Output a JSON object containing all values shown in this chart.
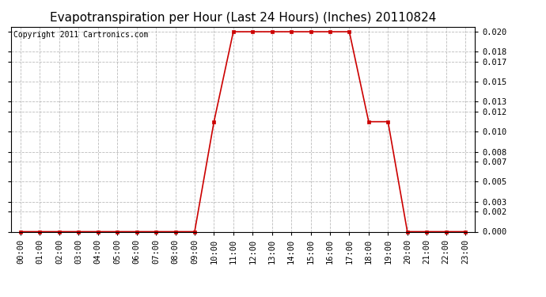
{
  "title": "Evapotranspiration per Hour (Last 24 Hours) (Inches) 20110824",
  "copyright_text": "Copyright 2011 Cartronics.com",
  "x_labels": [
    "00:00",
    "01:00",
    "02:00",
    "03:00",
    "04:00",
    "05:00",
    "06:00",
    "07:00",
    "08:00",
    "09:00",
    "10:00",
    "11:00",
    "12:00",
    "13:00",
    "14:00",
    "15:00",
    "16:00",
    "17:00",
    "18:00",
    "19:00",
    "20:00",
    "21:00",
    "22:00",
    "23:00"
  ],
  "x_values": [
    0,
    1,
    2,
    3,
    4,
    5,
    6,
    7,
    8,
    9,
    10,
    11,
    12,
    13,
    14,
    15,
    16,
    17,
    18,
    19,
    20,
    21,
    22,
    23
  ],
  "y_values": [
    0.0,
    0.0,
    0.0,
    0.0,
    0.0,
    0.0,
    0.0,
    0.0,
    0.0,
    0.0,
    0.011,
    0.02,
    0.02,
    0.02,
    0.02,
    0.02,
    0.02,
    0.02,
    0.011,
    0.011,
    0.0,
    0.0,
    0.0,
    0.0
  ],
  "line_color": "#cc0000",
  "marker": "s",
  "marker_size": 3,
  "background_color": "#ffffff",
  "grid_color": "#bbbbbb",
  "y_ticks": [
    0.0,
    0.002,
    0.003,
    0.005,
    0.007,
    0.008,
    0.01,
    0.012,
    0.013,
    0.015,
    0.017,
    0.018,
    0.02
  ],
  "ylim": [
    0.0,
    0.0205
  ],
  "title_fontsize": 11,
  "tick_fontsize": 7.5,
  "copyright_fontsize": 7
}
